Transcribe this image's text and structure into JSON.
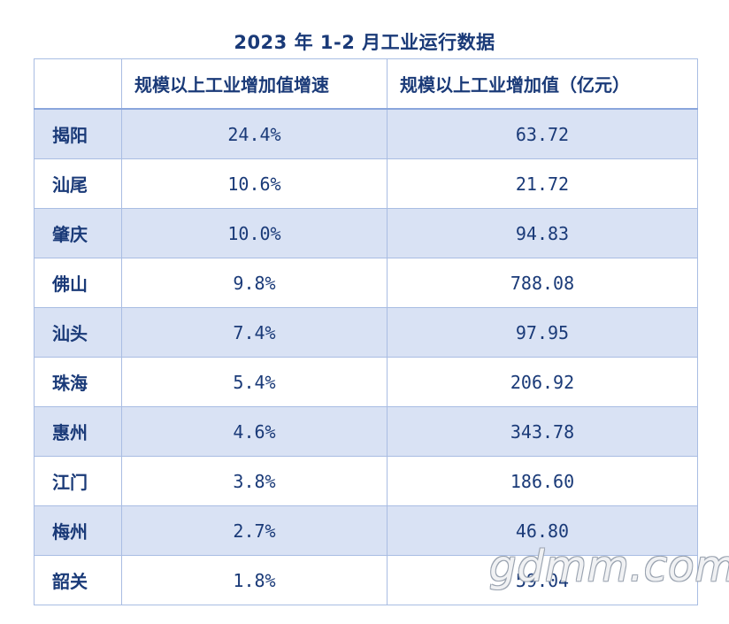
{
  "title": "2023 年 1-2 月工业运行数据",
  "columns": {
    "corner": "",
    "growth": "规模以上工业增加值增速",
    "value": "规模以上工业增加值（亿元）"
  },
  "rows": [
    {
      "city": "揭阳",
      "growth": "24.4%",
      "value": "63.72"
    },
    {
      "city": "汕尾",
      "growth": "10.6%",
      "value": "21.72"
    },
    {
      "city": "肇庆",
      "growth": "10.0%",
      "value": "94.83"
    },
    {
      "city": "佛山",
      "growth": "9.8%",
      "value": "788.08"
    },
    {
      "city": "汕头",
      "growth": "7.4%",
      "value": "97.95"
    },
    {
      "city": "珠海",
      "growth": "5.4%",
      "value": "206.92"
    },
    {
      "city": "惠州",
      "growth": "4.6%",
      "value": "343.78"
    },
    {
      "city": "江门",
      "growth": "3.8%",
      "value": "186.60"
    },
    {
      "city": "梅州",
      "growth": "2.7%",
      "value": "46.80"
    },
    {
      "city": "韶关",
      "growth": "1.8%",
      "value": "59.04"
    }
  ],
  "watermark": "gdmm.com",
  "colors": {
    "text": "#1a3a78",
    "band": "#d9e2f4",
    "border": "#a9bde3"
  }
}
